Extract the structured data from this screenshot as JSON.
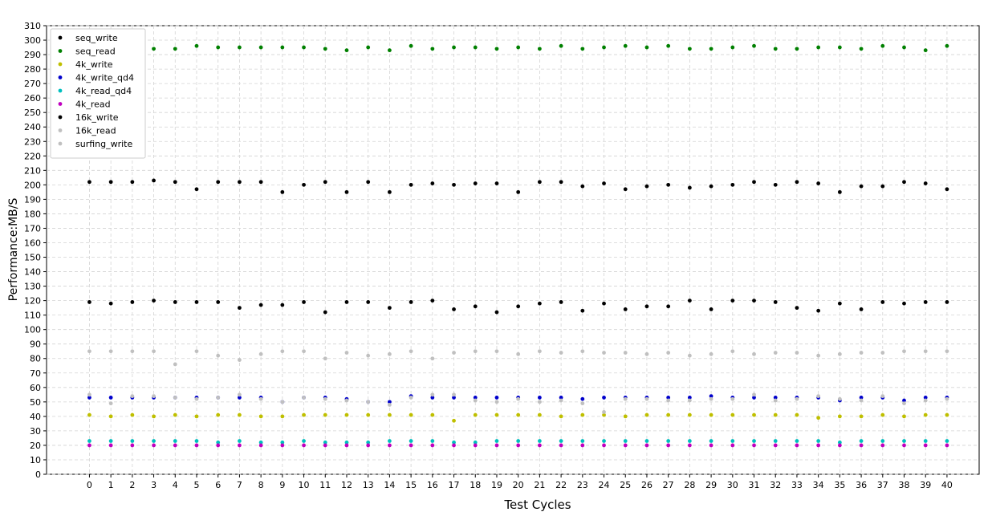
{
  "chart_data": {
    "type": "scatter",
    "x_label": "Test Cycles",
    "y_label": "Performance:MB/S",
    "x": [
      0,
      1,
      2,
      3,
      4,
      5,
      6,
      7,
      8,
      9,
      10,
      11,
      12,
      13,
      14,
      15,
      16,
      17,
      18,
      19,
      20,
      21,
      22,
      23,
      24,
      25,
      26,
      27,
      28,
      29,
      30,
      31,
      32,
      33,
      34,
      35,
      36,
      37,
      38,
      39,
      40
    ],
    "xlim": [
      -2,
      41.5
    ],
    "xticks": [
      0,
      1,
      2,
      3,
      4,
      5,
      6,
      7,
      8,
      9,
      10,
      11,
      12,
      13,
      14,
      15,
      16,
      17,
      18,
      19,
      20,
      21,
      22,
      23,
      24,
      25,
      26,
      27,
      28,
      29,
      30,
      31,
      32,
      33,
      34,
      35,
      36,
      37,
      38,
      39,
      40
    ],
    "ylim": [
      0,
      310
    ],
    "yticks": [
      0,
      10,
      20,
      30,
      40,
      50,
      60,
      70,
      80,
      90,
      100,
      110,
      120,
      130,
      140,
      150,
      160,
      170,
      180,
      190,
      200,
      210,
      220,
      230,
      240,
      250,
      260,
      270,
      280,
      290,
      300,
      310
    ],
    "grid": true,
    "legend": "upper-left",
    "series": [
      {
        "name": "seq_write",
        "color": "#000000",
        "values": [
          202,
          202,
          202,
          203,
          202,
          197,
          202,
          202,
          202,
          195,
          200,
          202,
          195,
          202,
          195,
          200,
          201,
          200,
          201,
          201,
          195,
          202,
          202,
          199,
          201,
          197,
          199,
          200,
          198,
          199,
          200,
          202,
          200,
          202,
          201,
          195,
          199,
          199,
          202,
          201,
          197
        ]
      },
      {
        "name": "seq_read",
        "color": "#008000",
        "values": [
          295,
          295,
          295,
          294,
          294,
          296,
          295,
          295,
          295,
          295,
          295,
          294,
          293,
          295,
          293,
          296,
          294,
          295,
          295,
          294,
          295,
          294,
          296,
          294,
          295,
          296,
          295,
          296,
          294,
          294,
          295,
          296,
          294,
          294,
          295,
          295,
          294,
          296,
          295,
          293,
          296
        ]
      },
      {
        "name": "4k_write",
        "color": "#bfbf00",
        "values": [
          41,
          40,
          41,
          40,
          41,
          40,
          41,
          41,
          40,
          40,
          41,
          41,
          41,
          41,
          41,
          41,
          41,
          37,
          41,
          41,
          41,
          41,
          40,
          41,
          41,
          40,
          41,
          41,
          41,
          41,
          41,
          41,
          41,
          41,
          39,
          40,
          40,
          41,
          40,
          41,
          41
        ]
      },
      {
        "name": "4k_write_qd4",
        "color": "#0000cc",
        "values": [
          53,
          53,
          53,
          53,
          53,
          53,
          53,
          53,
          53,
          50,
          53,
          53,
          52,
          50,
          50,
          54,
          53,
          53,
          53,
          53,
          53,
          53,
          53,
          52,
          53,
          53,
          53,
          53,
          53,
          54,
          53,
          53,
          53,
          53,
          53,
          51,
          53,
          53,
          51,
          53,
          53
        ]
      },
      {
        "name": "4k_read_qd4",
        "color": "#00bfbf",
        "values": [
          23,
          23,
          23,
          23,
          23,
          23,
          22,
          23,
          22,
          22,
          23,
          22,
          22,
          22,
          23,
          23,
          23,
          22,
          22,
          23,
          23,
          23,
          23,
          23,
          23,
          23,
          23,
          23,
          23,
          23,
          23,
          23,
          23,
          23,
          23,
          22,
          23,
          23,
          23,
          23,
          23
        ]
      },
      {
        "name": "4k_read",
        "color": "#bf00bf",
        "values": [
          20,
          20,
          20,
          20,
          20,
          20,
          20,
          20,
          20,
          20,
          20,
          20,
          20,
          20,
          20,
          20,
          20,
          20,
          20,
          20,
          20,
          20,
          20,
          20,
          20,
          20,
          20,
          20,
          20,
          20,
          20,
          20,
          20,
          20,
          20,
          20,
          20,
          20,
          20,
          20,
          20
        ]
      },
      {
        "name": "16k_write",
        "color": "#000000",
        "values": [
          119,
          118,
          119,
          120,
          119,
          119,
          119,
          115,
          117,
          117,
          119,
          112,
          119,
          119,
          115,
          119,
          120,
          114,
          116,
          112,
          116,
          118,
          119,
          113,
          118,
          114,
          116,
          116,
          120,
          114,
          120,
          120,
          119,
          115,
          113,
          118,
          114,
          119,
          118,
          119,
          119
        ]
      },
      {
        "name": "16k_read",
        "color": "#c0c0c0",
        "values": [
          85,
          85,
          85,
          85,
          76,
          85,
          82,
          79,
          83,
          85,
          85,
          80,
          84,
          82,
          83,
          85,
          80,
          84,
          85,
          85,
          83,
          85,
          84,
          85,
          84,
          84,
          83,
          84,
          82,
          83,
          85,
          83,
          84,
          84,
          82,
          83,
          84,
          84,
          85,
          85,
          85
        ]
      },
      {
        "name": "surfing_write",
        "color": "#c0c0c0",
        "values": [
          55,
          49,
          54,
          54,
          53,
          52,
          53,
          55,
          52,
          50,
          53,
          52,
          51,
          50,
          48,
          53,
          55,
          55,
          51,
          50,
          52,
          50,
          51,
          49,
          43,
          52,
          52,
          51,
          51,
          52,
          52,
          55,
          51,
          52,
          54,
          52,
          51,
          54,
          49,
          51,
          52
        ]
      }
    ]
  }
}
